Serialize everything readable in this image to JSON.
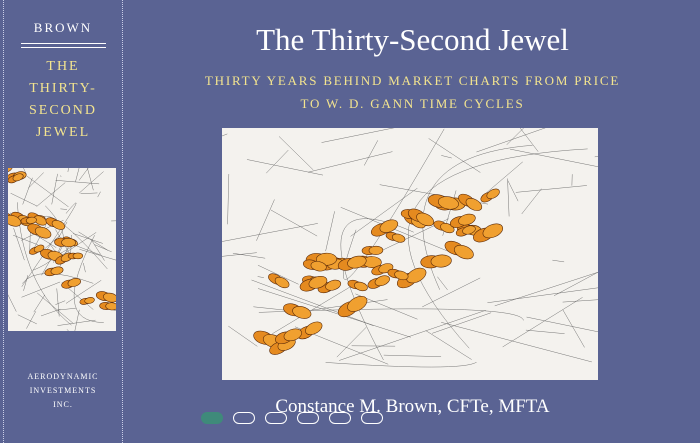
{
  "spine": {
    "author": "BROWN",
    "title_lines": [
      "THE",
      "THIRTY-",
      "SECOND",
      "JEWEL"
    ],
    "publisher_lines": [
      "AERODYNAMIC",
      "INVESTMENTS",
      "INC."
    ]
  },
  "cover": {
    "title": "The Thirty-Second Jewel",
    "subtitle_lines": [
      "THIRTY YEARS BEHIND MARKET CHARTS FROM PRICE",
      "TO W. D. GANN TIME CYCLES"
    ],
    "author": "Constance M. Brown, CFTe, MFTA"
  }
}
